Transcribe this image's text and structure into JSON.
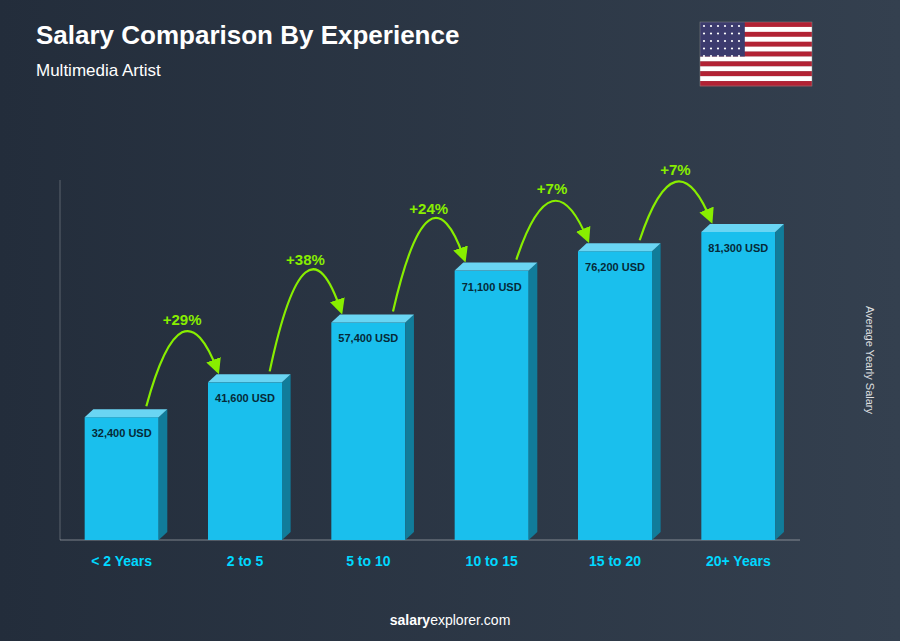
{
  "chart_data": {
    "type": "bar",
    "title": "Salary Comparison By Experience",
    "subtitle": "Multimedia Artist",
    "categories": [
      "< 2 Years",
      "2 to 5",
      "5 to 10",
      "10 to 15",
      "15 to 20",
      "20+ Years"
    ],
    "values": [
      32400,
      41600,
      57400,
      71100,
      76200,
      81300
    ],
    "value_labels": [
      "32,400 USD",
      "41,600 USD",
      "57,400 USD",
      "71,100 USD",
      "76,200 USD",
      "81,300 USD"
    ],
    "annotations": [
      "+29%",
      "+38%",
      "+24%",
      "+7%",
      "+7%"
    ],
    "ylabel": "Average Yearly Salary",
    "footer": [
      "salary",
      "explorer.com"
    ],
    "color": "#1ABFED",
    "ylim": [
      0,
      95000
    ],
    "data_labels": true,
    "tick_labels": "x",
    "grid": false
  }
}
